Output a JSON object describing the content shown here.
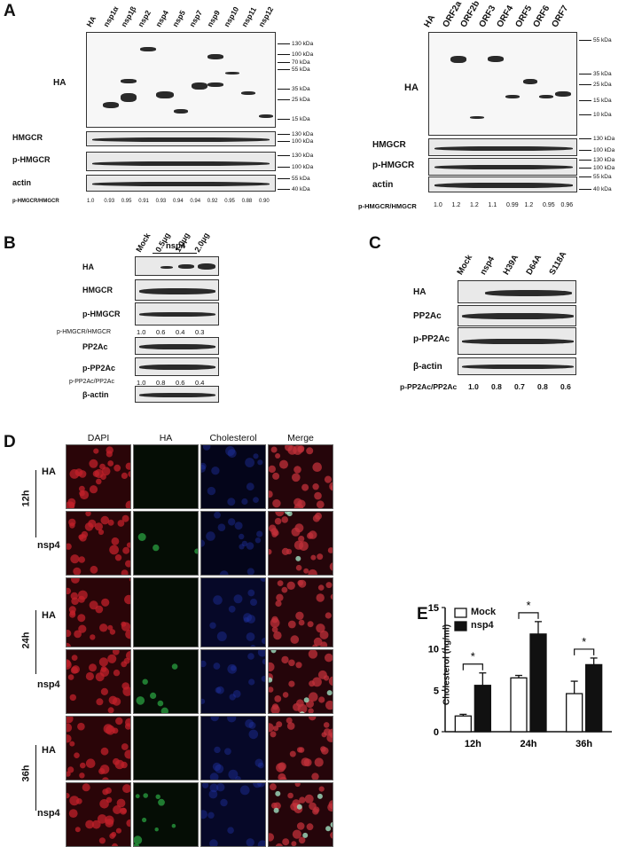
{
  "panels": {
    "A": "A",
    "B": "B",
    "C": "C",
    "D": "D",
    "E": "E"
  },
  "panelA_left": {
    "lanes": [
      "HA",
      "nsp1α",
      "nsp1β",
      "nsp2",
      "nsp4",
      "nsp5",
      "nsp7",
      "nsp9",
      "nsp10",
      "nsp11",
      "nsp12"
    ],
    "rows": [
      "HA",
      "HMGCR",
      "p-HMGCR",
      "actin"
    ],
    "markers_HA": [
      "130 kDa",
      "100 kDa",
      "70 kDa",
      "55 kDa",
      "35 kDa",
      "25 kDa",
      "15 kDa"
    ],
    "markers_HMGCR": [
      "130 kDa",
      "100 kDa"
    ],
    "markers_pHMGCR": [
      "130 kDa",
      "100 kDa"
    ],
    "markers_actin": [
      "55 kDa",
      "40 kDa"
    ],
    "ratio_label": "p-HMGCR/HMGCR",
    "ratios": [
      "1.0",
      "0.93",
      "0.95",
      "0.91",
      "0.93",
      "0.94",
      "0.94",
      "0.92",
      "0.95",
      "0.88",
      "0.90"
    ]
  },
  "panelA_right": {
    "lanes": [
      "HA",
      "ORF2a",
      "ORF2b",
      "ORF3",
      "ORF4",
      "ORF5",
      "ORF6",
      "ORF7"
    ],
    "rows": [
      "HA",
      "HMGCR",
      "p-HMGCR",
      "actin"
    ],
    "markers_HA": [
      "55 kDa",
      "35 kDa",
      "25 kDa",
      "15 kDa",
      "10 kDa"
    ],
    "markers_HMGCR": [
      "130 kDa",
      "100 kDa"
    ],
    "markers_pHMGCR": [
      "130 kDa",
      "100 kDa"
    ],
    "markers_actin": [
      "55 kDa",
      "40 kDa"
    ],
    "ratio_label": "p-HMGCR/HMGCR",
    "ratios": [
      "1.0",
      "1.2",
      "1.2",
      "1.1",
      "0.99",
      "1.2",
      "0.95",
      "0.96"
    ]
  },
  "panelB": {
    "group_label": "nsp4",
    "lanes": [
      "Mock",
      "0.5μg",
      "1.0μg",
      "2.0μg"
    ],
    "rows": [
      "HA",
      "HMGCR",
      "p-HMGCR",
      "PP2Ac",
      "p-PP2Ac",
      "β-actin"
    ],
    "ratio1_label": "p-HMGCR/HMGCR",
    "ratio1": [
      "1.0",
      "0.6",
      "0.4",
      "0.3"
    ],
    "ratio2_label": "p-PP2Ac/PP2Ac",
    "ratio2": [
      "1.0",
      "0.8",
      "0.6",
      "0.4"
    ]
  },
  "panelC": {
    "lanes": [
      "Mock",
      "nsp4",
      "H39A",
      "D64A",
      "S118A"
    ],
    "rows": [
      "HA",
      "PP2Ac",
      "p-PP2Ac",
      "β-actin"
    ],
    "ratio_label": "p-PP2Ac/PP2Ac",
    "ratios": [
      "1.0",
      "0.8",
      "0.7",
      "0.8",
      "0.6"
    ]
  },
  "panelD": {
    "columns": [
      "DAPI",
      "HA",
      "Cholesterol",
      "Merge"
    ],
    "timepoints": [
      "12h",
      "24h",
      "36h"
    ],
    "row_labels": [
      "HA",
      "nsp4",
      "HA",
      "nsp4",
      "HA",
      "nsp4"
    ]
  },
  "chart_data": {
    "type": "bar",
    "categories": [
      "12h",
      "24h",
      "36h"
    ],
    "series": [
      {
        "name": "Mock",
        "values": [
          1.9,
          6.5,
          4.6
        ],
        "errors": [
          0.2,
          0.3,
          1.5
        ]
      },
      {
        "name": "nsp4",
        "values": [
          5.6,
          11.8,
          8.1
        ],
        "errors": [
          1.5,
          1.5,
          0.8
        ]
      }
    ],
    "ylabel": "Cholesterol (ng/ml)",
    "ylim": [
      0,
      15
    ],
    "yticks": [
      "0",
      "5",
      "10",
      "15"
    ],
    "significance": [
      "*",
      "*",
      "*"
    ],
    "legend": "top-left",
    "colors": {
      "Mock": "#ffffff",
      "nsp4": "#111111"
    }
  }
}
